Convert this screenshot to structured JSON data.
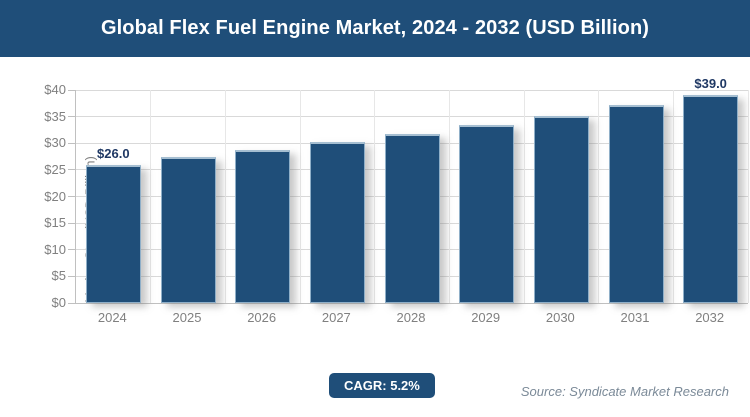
{
  "chart_data": {
    "type": "bar",
    "title": "Global Flex Fuel Engine Market, 2024 - 2032 (USD Billion)",
    "categories": [
      "2024",
      "2025",
      "2026",
      "2027",
      "2028",
      "2029",
      "2030",
      "2031",
      "2032"
    ],
    "values": [
      26.0,
      27.4,
      28.8,
      30.3,
      31.8,
      33.5,
      35.2,
      37.1,
      39.0
    ],
    "point_labels": [
      "$26.0",
      "",
      "",
      "",
      "",
      "",
      "",
      "",
      "$39.0"
    ],
    "ylabel": "Market Size (USD Billion)",
    "xlabel": "",
    "ylim": [
      0,
      40
    ],
    "ytick_step": 5,
    "ytick_labels": [
      "$0",
      "$5",
      "$10",
      "$15",
      "$20",
      "$25",
      "$30",
      "$35",
      "$40"
    ],
    "grid": true,
    "legend": false
  },
  "footer": {
    "cagr_label": "CAGR: 5.2%",
    "source": "Source: Syndicate Market Research"
  },
  "colors": {
    "header_bg": "#1f4e79",
    "header_text": "#ffffff",
    "bar_fill": "#1f4e79",
    "bar_edge_light": "#a5bed1",
    "data_label": "#1f3864",
    "gridline": "#d9d9d9",
    "axis_line": "#c0c0c0",
    "tick_text": "#808080",
    "badge_bg": "#1f4e79",
    "badge_text": "#ffffff",
    "source_text": "#7b8a98"
  }
}
